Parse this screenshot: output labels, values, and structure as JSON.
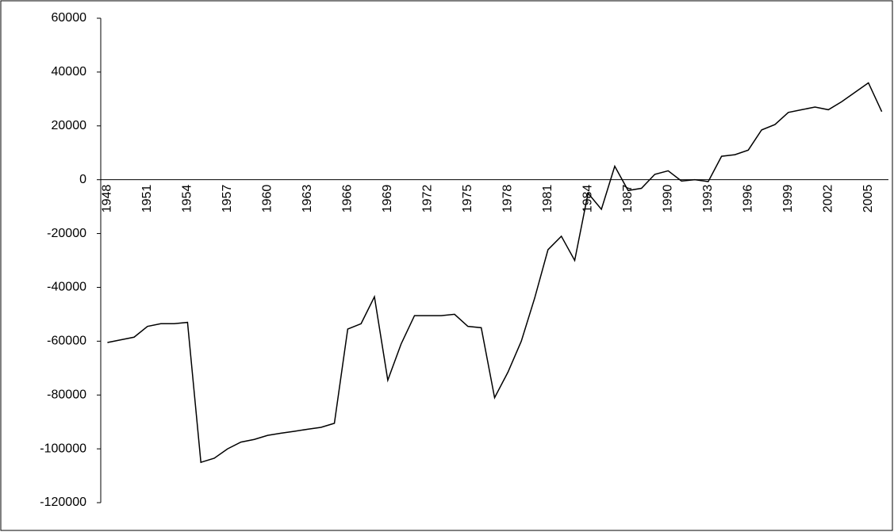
{
  "chart_data": {
    "type": "line",
    "categories": [
      "1948",
      null,
      null,
      "1951",
      null,
      null,
      "1954",
      null,
      null,
      "1957",
      null,
      null,
      "1960",
      null,
      null,
      "1963",
      null,
      null,
      "1966",
      null,
      null,
      "1969",
      null,
      null,
      "1972",
      null,
      null,
      "1975",
      null,
      null,
      "1978",
      null,
      null,
      "1981",
      null,
      null,
      "1984",
      null,
      null,
      "1987",
      null,
      null,
      "1990",
      null,
      null,
      "1993",
      null,
      null,
      "1996",
      null,
      null,
      "1999",
      null,
      null,
      "2002",
      null,
      null,
      "2005",
      null
    ],
    "series": [
      {
        "color": "#000000",
        "values": [
          -60500,
          -59500,
          -58500,
          -54500,
          -53500,
          -53500,
          -53000,
          -105000,
          -103500,
          -100000,
          -97500,
          -96500,
          -95000,
          -94200,
          -93500,
          -92700,
          -92000,
          -90500,
          -55500,
          -53500,
          -43500,
          -74500,
          -61000,
          -50500,
          -50500,
          -50500,
          -50000,
          -54500,
          -55000,
          -81000,
          -71500,
          -60000,
          -44000,
          -26000,
          -21000,
          -30000,
          -5000,
          -11000,
          5000,
          -4000,
          -3200,
          2000,
          3300,
          -500,
          0,
          -700,
          8700,
          9300,
          11000,
          18500,
          20500,
          25000,
          26000,
          27000,
          26000,
          29000,
          32500,
          36000,
          25300
        ]
      }
    ],
    "ylim": [
      -120000,
      60000
    ],
    "yticks": [
      -120000,
      -100000,
      -80000,
      -60000,
      -40000,
      -20000,
      0,
      20000,
      40000,
      60000
    ],
    "grid": false
  }
}
